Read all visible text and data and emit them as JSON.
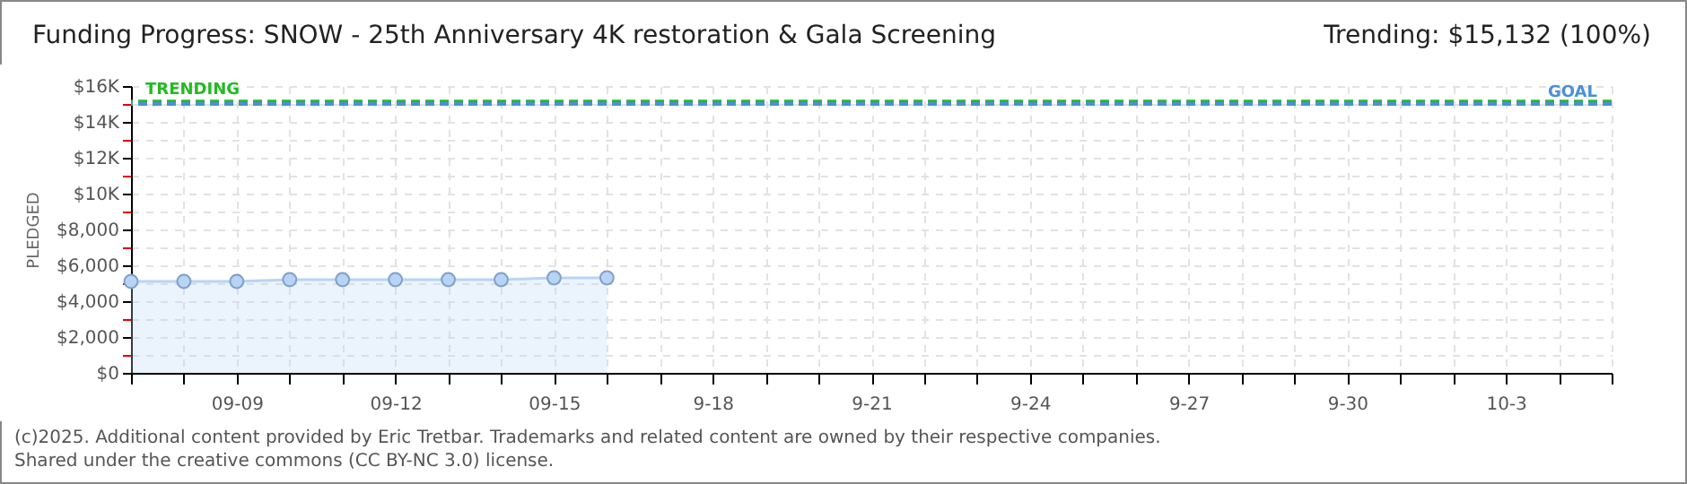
{
  "chart_data": {
    "type": "area",
    "title": "Funding Progress: SNOW - 25th Anniversary 4K restoration & Gala Screening",
    "ylabel": "PLEDGED",
    "annotations": [
      "Trending: $15,132 (100%)",
      "(c)2025. Additional content provided by Eric Tretbar. Trademarks and related content are owned by their respective companies.",
      "Shared under the creative commons (CC BY-NC 3.0) license."
    ],
    "x": [
      "2025-09-07",
      "2025-09-08",
      "2025-09-09",
      "2025-09-10",
      "2025-09-11",
      "2025-09-12",
      "2025-09-13",
      "2025-09-14",
      "2025-09-15",
      "2025-09-16"
    ],
    "series": [
      {
        "color": "#b8d4f5",
        "values": [
          5100,
          5100,
          5100,
          5200,
          5200,
          5200,
          5200,
          5200,
          5300,
          5300
        ]
      }
    ],
    "xlim": [
      "2025-09-07",
      "2025-10-05"
    ],
    "xticks": [
      {
        "value": "2025-09-07",
        "label": null
      },
      {
        "value": "2025-09-08",
        "label": null
      },
      {
        "value": "2025-09-09",
        "label": "09-09"
      },
      {
        "value": "2025-09-10",
        "label": null
      },
      {
        "value": "2025-09-11",
        "label": null
      },
      {
        "value": "2025-09-12",
        "label": "09-12"
      },
      {
        "value": "2025-09-13",
        "label": null
      },
      {
        "value": "2025-09-14",
        "label": null
      },
      {
        "value": "2025-09-15",
        "label": "09-15"
      },
      {
        "value": "2025-09-16",
        "label": null
      },
      {
        "value": "2025-09-17",
        "label": null
      },
      {
        "value": "2025-09-18",
        "label": "9-18"
      },
      {
        "value": "2025-09-19",
        "label": null
      },
      {
        "value": "2025-09-20",
        "label": null
      },
      {
        "value": "2025-09-21",
        "label": "9-21"
      },
      {
        "value": "2025-09-22",
        "label": null
      },
      {
        "value": "2025-09-23",
        "label": null
      },
      {
        "value": "2025-09-24",
        "label": "9-24"
      },
      {
        "value": "2025-09-25",
        "label": null
      },
      {
        "value": "2025-09-26",
        "label": null
      },
      {
        "value": "2025-09-27",
        "label": "9-27"
      },
      {
        "value": "2025-09-28",
        "label": null
      },
      {
        "value": "2025-09-29",
        "label": null
      },
      {
        "value": "2025-09-30",
        "label": "9-30"
      },
      {
        "value": "2025-10-01",
        "label": null
      },
      {
        "value": "2025-10-02",
        "label": null
      },
      {
        "value": "2025-10-03",
        "label": "10-3"
      },
      {
        "value": "2025-10-04",
        "label": null
      },
      {
        "value": "2025-10-05",
        "label": null
      }
    ],
    "ylim": [
      0,
      16000
    ],
    "yticks": [
      {
        "value": 0,
        "label": "$0"
      },
      {
        "value": 1000,
        "label": null
      },
      {
        "value": 2000,
        "label": "$2,000"
      },
      {
        "value": 3000,
        "label": null
      },
      {
        "value": 4000,
        "label": "$4,000"
      },
      {
        "value": 5000,
        "label": null
      },
      {
        "value": 6000,
        "label": "$6,000"
      },
      {
        "value": 7000,
        "label": null
      },
      {
        "value": 8000,
        "label": "$8,000"
      },
      {
        "value": 9000,
        "label": null
      },
      {
        "value": 10000,
        "label": "$10K"
      },
      {
        "value": 11000,
        "label": null
      },
      {
        "value": 12000,
        "label": "$12K"
      },
      {
        "value": 13000,
        "label": null
      },
      {
        "value": 14000,
        "label": "$14K"
      },
      {
        "value": 15000,
        "label": null
      },
      {
        "value": 16000,
        "label": "$16K"
      }
    ],
    "ref_lines": [
      {
        "axis": "y",
        "value": 15132,
        "label": "TRENDING",
        "color": "#22bb22",
        "line_style": "dashed"
      },
      {
        "axis": "y",
        "value": 15000,
        "label": "GOAL",
        "color": "#4a90d9",
        "line_style": "dashed"
      }
    ],
    "grid": true,
    "marker": "circle"
  }
}
